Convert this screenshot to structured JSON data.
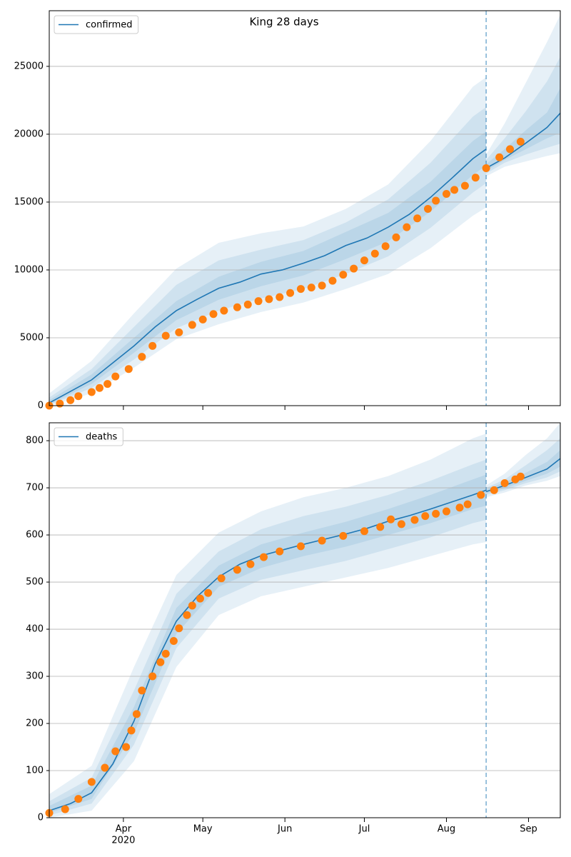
{
  "chart_data": [
    {
      "type": "line",
      "title": "King 28 days",
      "legend": "upper left",
      "grid": true,
      "xlim": [
        0,
        193
      ],
      "ylim": [
        0,
        29100
      ],
      "yticks": [
        0,
        5000,
        10000,
        15000,
        20000,
        25000
      ],
      "forecast_start": 165,
      "band_color": "#1f77b4",
      "series": [
        {
          "name": "confirmed",
          "color": "#1f77b4",
          "x": [
            0,
            8,
            16,
            24,
            32,
            40,
            48,
            56,
            64,
            72,
            80,
            88,
            96,
            104,
            112,
            120,
            128,
            136,
            144,
            152,
            160,
            165
          ],
          "values": [
            200,
            1050,
            1900,
            3150,
            4400,
            5800,
            7000,
            7850,
            8650,
            9100,
            9700,
            10000,
            10500,
            11050,
            11800,
            12350,
            13150,
            14100,
            15350,
            16750,
            18200,
            18900
          ]
        },
        {
          "color": "#1f77b4",
          "x": [
            165,
            172,
            180,
            188,
            193
          ],
          "values": [
            17500,
            18250,
            19350,
            20500,
            21550
          ]
        }
      ],
      "observed": {
        "color": "#ff7f0e",
        "x": [
          0,
          4,
          8,
          11,
          16,
          19,
          22,
          25,
          30,
          35,
          39,
          44,
          49,
          54,
          58,
          62,
          66,
          71,
          75,
          79,
          83,
          87,
          91,
          95,
          99,
          103,
          107,
          111,
          115,
          119,
          123,
          127,
          131,
          135,
          139,
          143,
          146,
          150,
          153,
          157,
          161,
          165,
          170,
          174,
          178
        ],
        "values": [
          0,
          150,
          400,
          700,
          1000,
          1300,
          1600,
          2150,
          2700,
          3600,
          4400,
          5150,
          5400,
          5950,
          6350,
          6750,
          7000,
          7250,
          7450,
          7700,
          7850,
          8000,
          8300,
          8600,
          8700,
          8850,
          9200,
          9650,
          10100,
          10700,
          11200,
          11750,
          12400,
          13150,
          13800,
          14500,
          15100,
          15600,
          15900,
          16200,
          16800,
          17500,
          18300,
          18900,
          19450
        ]
      },
      "band_groups": [
        {
          "x": [
            0,
            16,
            32,
            48,
            64,
            80,
            96,
            112,
            128,
            144,
            160,
            165
          ],
          "bands": [
            {
              "lower": [
                0,
                900,
                2800,
                4900,
                6000,
                6900,
                7600,
                8600,
                9700,
                11600,
                14000,
                14600
              ],
              "upper": [
                900,
                3300,
                6800,
                10100,
                12000,
                12700,
                13200,
                14500,
                16300,
                19500,
                23500,
                24200
              ]
            },
            {
              "lower": [
                50,
                1300,
                3400,
                5700,
                7000,
                7900,
                8600,
                9700,
                11000,
                13100,
                15700,
                16400
              ],
              "upper": [
                600,
                2700,
                5800,
                8900,
                10700,
                11500,
                12200,
                13500,
                15200,
                17900,
                21300,
                22000
              ]
            },
            {
              "lower": [
                100,
                1600,
                3900,
                6300,
                7800,
                8800,
                9600,
                10800,
                12100,
                14300,
                17000,
                17700
              ],
              "upper": [
                400,
                2300,
                5000,
                7700,
                9500,
                10600,
                11400,
                12800,
                14200,
                16500,
                19500,
                20200
              ]
            }
          ]
        },
        {
          "x": [
            165,
            172,
            180,
            188,
            193
          ],
          "bands": [
            {
              "lower": [
                16900,
                17600,
                18000,
                18400,
                18600
              ],
              "upper": [
                18500,
                20800,
                23800,
                26800,
                28800
              ]
            },
            {
              "lower": [
                17100,
                17900,
                18500,
                19000,
                19300
              ],
              "upper": [
                18100,
                19700,
                21700,
                23900,
                25700
              ]
            },
            {
              "lower": [
                17300,
                18100,
                18900,
                19700,
                20100
              ],
              "upper": [
                17800,
                18900,
                20300,
                21600,
                23400
              ]
            }
          ]
        }
      ]
    },
    {
      "type": "line",
      "legend": "upper left",
      "grid": true,
      "xlim": [
        0,
        193
      ],
      "ylim": [
        0,
        838
      ],
      "yticks": [
        0,
        100,
        200,
        300,
        400,
        500,
        600,
        700,
        800
      ],
      "xticks": [
        {
          "value": 28,
          "label": "Apr"
        },
        {
          "value": 58,
          "label": "May"
        },
        {
          "value": 89,
          "label": "Jun"
        },
        {
          "value": 119,
          "label": "Jul"
        },
        {
          "value": 150,
          "label": "Aug"
        },
        {
          "value": 181,
          "label": "Sep"
        }
      ],
      "year_label": "2020",
      "forecast_start": 165,
      "band_color": "#1f77b4",
      "series": [
        {
          "name": "deaths",
          "color": "#1f77b4",
          "x": [
            0,
            8,
            16,
            24,
            32,
            40,
            48,
            56,
            64,
            72,
            80,
            88,
            96,
            104,
            112,
            120,
            128,
            136,
            144,
            152,
            160,
            165
          ],
          "values": [
            15,
            30,
            53,
            114,
            205,
            326,
            417,
            470,
            511,
            538,
            556,
            568,
            580,
            591,
            602,
            614,
            629,
            641,
            655,
            670,
            685,
            695
          ]
        },
        {
          "color": "#1f77b4",
          "x": [
            165,
            172,
            180,
            188,
            193
          ],
          "values": [
            692,
            705,
            722,
            740,
            762
          ]
        }
      ],
      "observed": {
        "color": "#ff7f0e",
        "x": [
          0,
          6,
          11,
          16,
          21,
          25,
          29,
          31,
          33,
          35,
          39,
          42,
          44,
          47,
          49,
          52,
          54,
          57,
          60,
          65,
          71,
          76,
          81,
          87,
          95,
          103,
          111,
          119,
          125,
          129,
          133,
          138,
          142,
          146,
          150,
          155,
          158,
          163,
          168,
          172,
          176,
          178
        ],
        "values": [
          10,
          18,
          40,
          76,
          106,
          141,
          150,
          185,
          220,
          270,
          300,
          330,
          348,
          375,
          402,
          430,
          450,
          465,
          477,
          508,
          526,
          538,
          553,
          565,
          576,
          588,
          598,
          608,
          617,
          633,
          623,
          632,
          640,
          645,
          650,
          658,
          665,
          685,
          695,
          710,
          718,
          724
        ]
      },
      "band_groups": [
        {
          "x": [
            0,
            16,
            32,
            48,
            64,
            80,
            96,
            112,
            128,
            144,
            160,
            165
          ],
          "bands": [
            {
              "lower": [
                0,
                15,
                120,
                320,
                430,
                470,
                490,
                510,
                530,
                555,
                580,
                585
              ],
              "upper": [
                50,
                110,
                320,
                515,
                605,
                650,
                680,
                700,
                725,
                760,
                805,
                815
              ]
            },
            {
              "lower": [
                5,
                30,
                155,
                360,
                465,
                505,
                525,
                545,
                570,
                595,
                625,
                632
              ],
              "upper": [
                35,
                85,
                270,
                475,
                565,
                612,
                640,
                660,
                685,
                715,
                750,
                760
              ]
            },
            {
              "lower": [
                10,
                40,
                180,
                390,
                490,
                530,
                555,
                575,
                600,
                625,
                655,
                662
              ],
              "upper": [
                25,
                68,
                235,
                445,
                535,
                580,
                605,
                628,
                655,
                685,
                718,
                728
              ]
            }
          ]
        },
        {
          "x": [
            165,
            172,
            180,
            188,
            193
          ],
          "bands": [
            {
              "lower": [
                680,
                690,
                705,
                715,
                725
              ],
              "upper": [
                705,
                730,
                770,
                805,
                838
              ]
            },
            {
              "lower": [
                685,
                695,
                710,
                722,
                735
              ],
              "upper": [
                700,
                718,
                748,
                780,
                805
              ]
            },
            {
              "lower": [
                688,
                699,
                715,
                730,
                745
              ],
              "upper": [
                696,
                712,
                732,
                755,
                780
              ]
            }
          ]
        }
      ]
    }
  ]
}
